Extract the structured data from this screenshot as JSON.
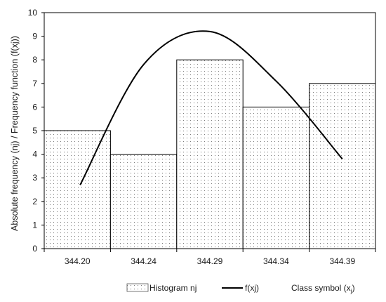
{
  "chart_data": {
    "type": "bar",
    "categories": [
      "344.20",
      "344.24",
      "344.29",
      "344.34",
      "344.39"
    ],
    "series": [
      {
        "name": "Histogram nj",
        "type": "bar",
        "values": [
          5,
          4,
          8,
          6,
          7
        ]
      },
      {
        "name": "f(xj)",
        "type": "line",
        "values": [
          2.7,
          7.8,
          9.2,
          7.1,
          3.8
        ]
      }
    ],
    "ylabel": "Absolute frequency (nj) / Frequency function (f(xj))",
    "xlabel_prefix": "Class symbol (x",
    "xlabel_sub": "j",
    "xlabel_suffix": ")",
    "ylim": [
      0,
      10
    ],
    "yticks": [
      "0",
      "1",
      "2",
      "3",
      "4",
      "5",
      "6",
      "7",
      "8",
      "9",
      "10"
    ],
    "grid": false,
    "legend_position": "bottom",
    "colors": {
      "bar_fill": "#ffffff",
      "bar_dots": "#7a7a7a",
      "line": "#000000",
      "axis": "#000000"
    }
  }
}
